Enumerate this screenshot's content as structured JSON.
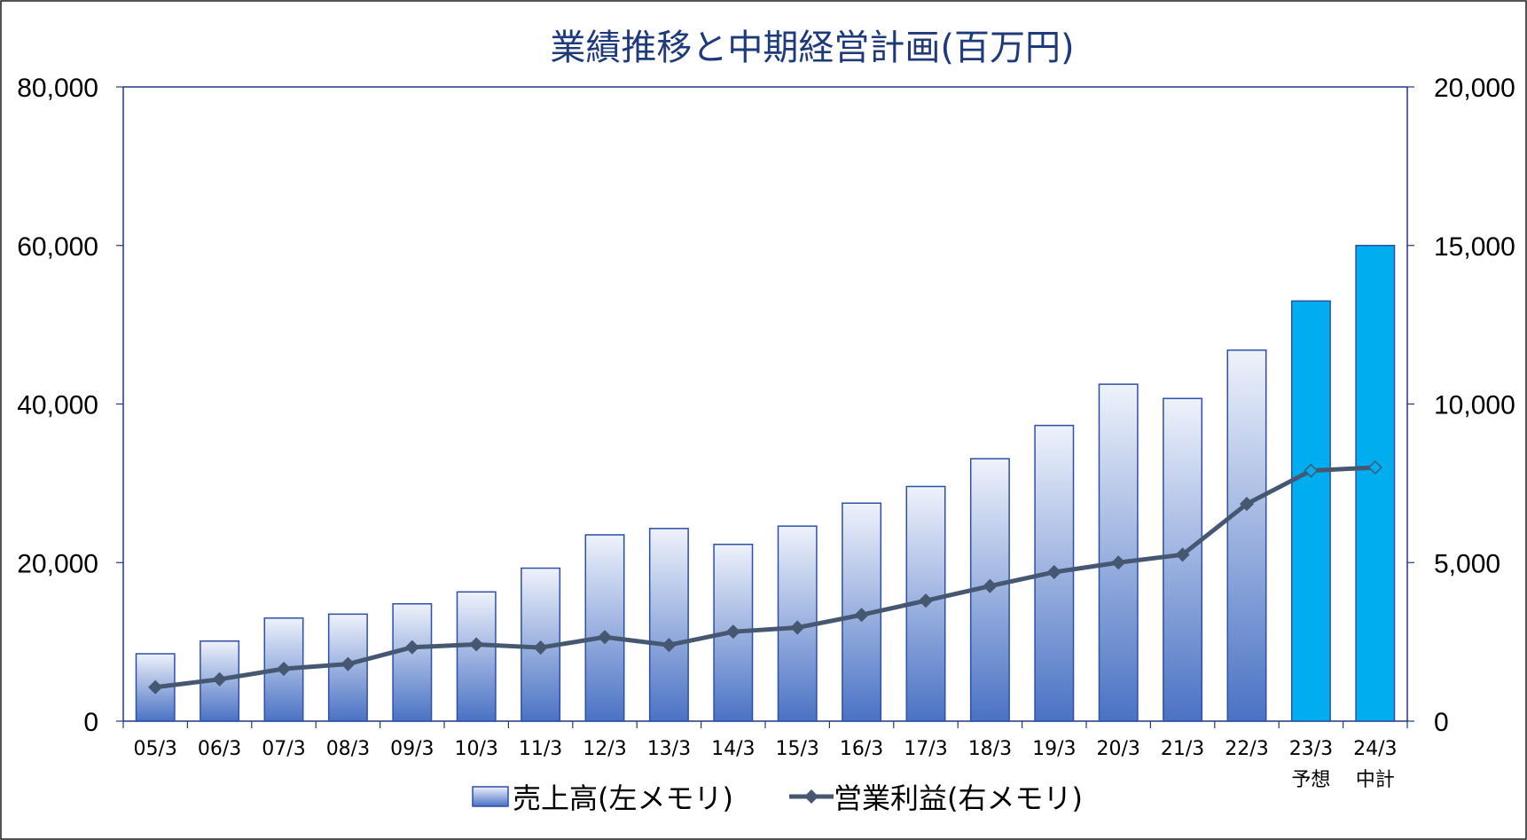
{
  "chart_data": {
    "type": "bar",
    "title": "業績推移と中期経営計画(百万円)",
    "categories": [
      "05/3",
      "06/3",
      "07/3",
      "08/3",
      "09/3",
      "10/3",
      "11/3",
      "12/3",
      "13/3",
      "14/3",
      "15/3",
      "16/3",
      "17/3",
      "18/3",
      "19/3",
      "20/3",
      "21/3",
      "22/3",
      "23/3",
      "24/3"
    ],
    "category_sublabels": [
      "",
      "",
      "",
      "",
      "",
      "",
      "",
      "",
      "",
      "",
      "",
      "",
      "",
      "",
      "",
      "",
      "",
      "",
      "予想",
      "中計"
    ],
    "series": [
      {
        "name": "売上高(左メモリ)",
        "type": "bar",
        "axis": "left",
        "values": [
          8500,
          10100,
          13000,
          13500,
          14800,
          16300,
          19300,
          23500,
          24300,
          22300,
          24600,
          27500,
          29600,
          33100,
          37300,
          42500,
          40700,
          46800,
          53000,
          60000
        ]
      },
      {
        "name": "営業利益(右メモリ)",
        "type": "line",
        "axis": "right",
        "values": [
          1070,
          1320,
          1650,
          1800,
          2330,
          2420,
          2320,
          2650,
          2400,
          2820,
          2950,
          3350,
          3800,
          4260,
          4700,
          5000,
          5250,
          6850,
          7900,
          8000
        ]
      }
    ],
    "y_left": {
      "range": [
        0,
        80000
      ],
      "ticks": [
        "0",
        "20,000",
        "40,000",
        "60,000",
        "80,000"
      ]
    },
    "y_right": {
      "range": [
        0,
        20000
      ],
      "ticks": [
        "0",
        "5,000",
        "10,000",
        "15,000",
        "20,000"
      ]
    },
    "grid": false,
    "legend": "bottom",
    "forecast_categories": [
      "23/3",
      "24/3"
    ]
  },
  "colors": {
    "title": "#1f3a7a",
    "bar_top": "#eef2fb",
    "bar_bottom": "#4a72c4",
    "bar_border": "#2d4fa8",
    "forecast_bar": "#00aeef",
    "line": "#465772",
    "forecast_marker": "#00aeef"
  }
}
